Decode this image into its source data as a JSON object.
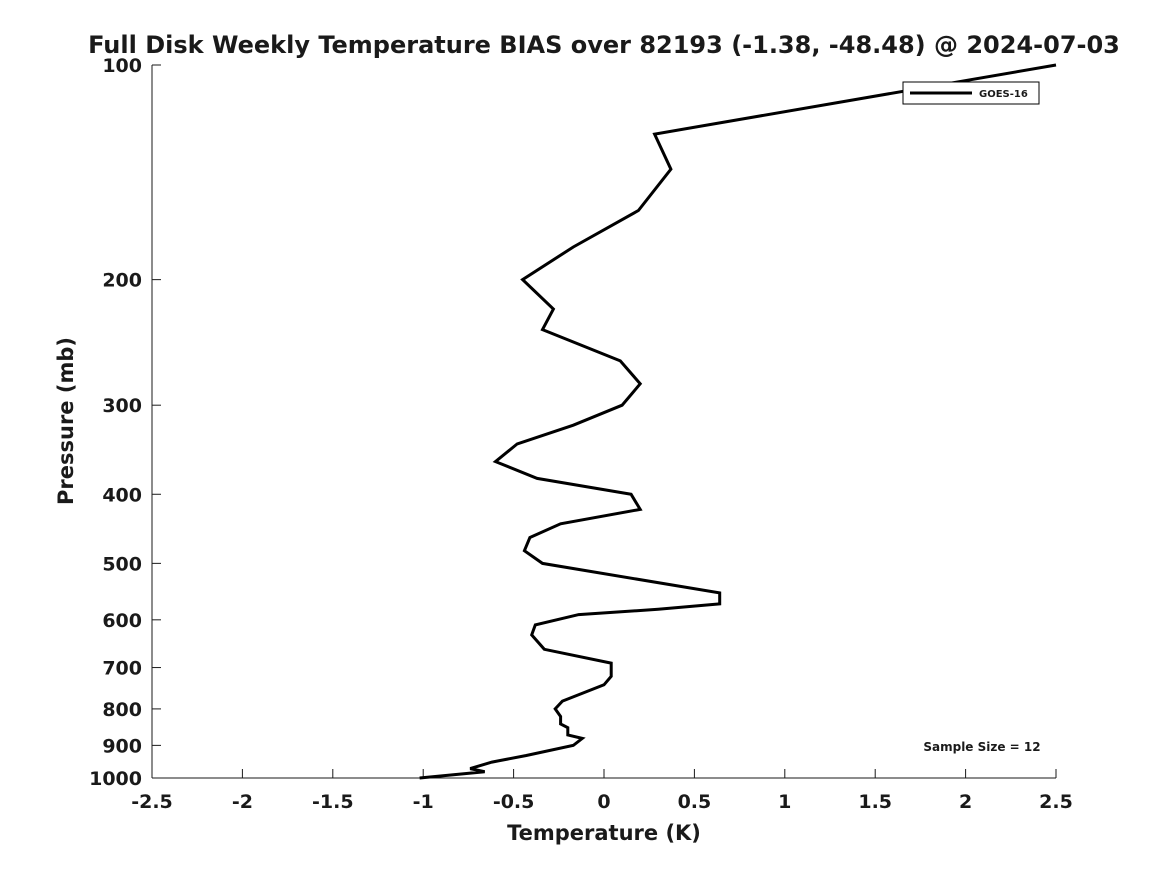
{
  "chart_data": {
    "type": "line",
    "title": "Full Disk Weekly Temperature BIAS over 82193 (-1.38, -48.48) @ 2024-07-03",
    "xlabel": "Temperature (K)",
    "ylabel": "Pressure (mb)",
    "xlim": [
      -2.5,
      2.5
    ],
    "ylim": [
      100,
      1000
    ],
    "y_scale": "log",
    "y_reversed": true,
    "x_ticks": [
      -2.5,
      -2,
      -1.5,
      -1,
      -0.5,
      0,
      0.5,
      1,
      1.5,
      2,
      2.5
    ],
    "x_tick_labels": [
      "-2.5",
      "-2",
      "-1.5",
      "-1",
      "-0.5",
      "0",
      "0.5",
      "1",
      "1.5",
      "2",
      "2.5"
    ],
    "y_ticks": [
      100,
      200,
      300,
      400,
      500,
      600,
      700,
      800,
      900,
      1000
    ],
    "y_tick_labels": [
      "100",
      "200",
      "300",
      "400",
      "500",
      "600",
      "700",
      "800",
      "900",
      "1000"
    ],
    "grid": false,
    "legend_position": "top-right",
    "annotation": "Sample Size = 12",
    "series": [
      {
        "name": "GOES-16",
        "color": "#000000",
        "x": [
          2.5,
          0.28,
          0.37,
          0.19,
          -0.17,
          -0.45,
          -0.28,
          -0.34,
          0.09,
          0.2,
          0.1,
          -0.17,
          -0.48,
          -0.6,
          -0.37,
          0.15,
          0.2,
          -0.24,
          -0.41,
          -0.44,
          -0.34,
          0.64,
          0.64,
          0.3,
          -0.14,
          -0.38,
          -0.4,
          -0.33,
          0.04,
          0.04,
          0.0,
          -0.23,
          -0.27,
          -0.24,
          -0.24,
          -0.2,
          -0.2,
          -0.12,
          -0.17,
          -0.43,
          -0.62,
          -0.74,
          -0.66,
          -1.02
        ],
        "y": [
          100,
          125,
          140,
          160,
          180,
          200,
          220,
          235,
          260,
          280,
          300,
          320,
          340,
          360,
          380,
          400,
          420,
          440,
          460,
          480,
          500,
          550,
          570,
          580,
          590,
          610,
          630,
          660,
          690,
          720,
          740,
          780,
          800,
          820,
          840,
          850,
          870,
          880,
          900,
          930,
          950,
          970,
          980,
          1000
        ]
      }
    ]
  }
}
